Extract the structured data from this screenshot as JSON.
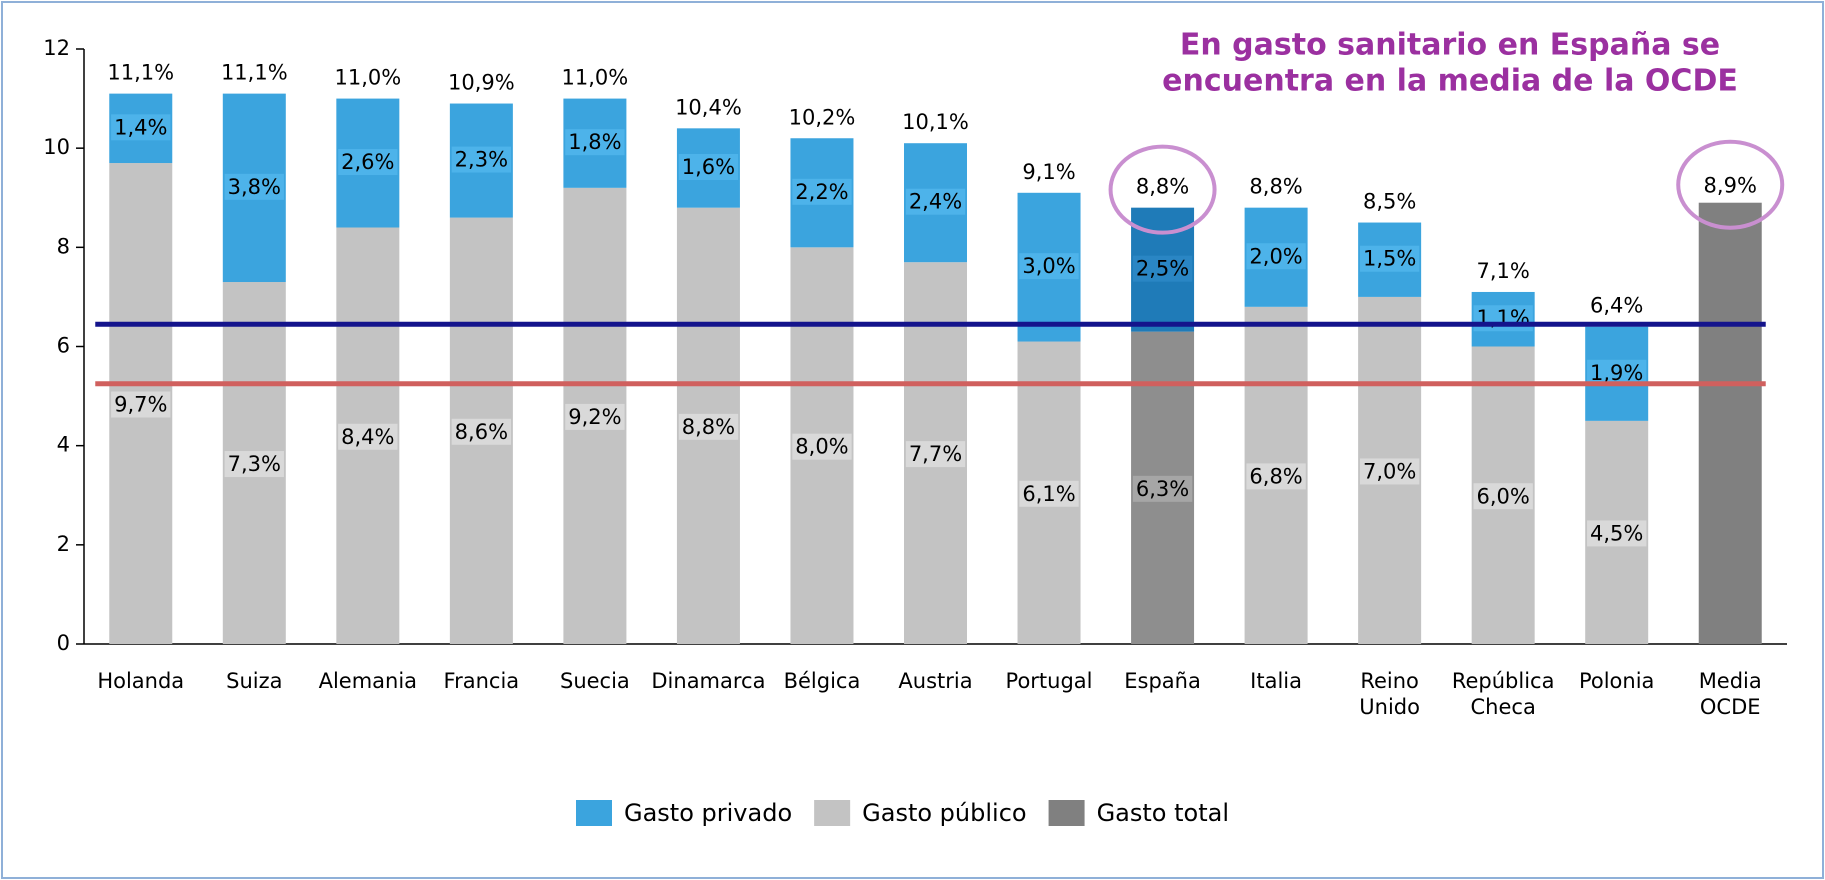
{
  "chart_data": {
    "type": "stacked_bar",
    "annotation": [
      "En gasto sanitario en España se",
      "encuentra en la media de la OCDE"
    ],
    "categories": [
      "Holanda",
      "Suiza",
      "Alemania",
      "Francia",
      "Suecia",
      "Dinamarca",
      "Bélgica",
      "Austria",
      "Portugal",
      "España",
      "Italia",
      "Reino Unido",
      "República Checa",
      "Polonia",
      "Media OCDE"
    ],
    "series": [
      {
        "name": "Gasto privado",
        "color": "#3ba4de",
        "highlight_color": "#1f7bb8",
        "values": [
          1.4,
          3.8,
          2.6,
          2.3,
          1.8,
          1.6,
          2.2,
          2.4,
          3.0,
          2.5,
          2.0,
          1.5,
          1.1,
          1.9,
          null
        ],
        "value_labels": [
          "1,4%",
          "3,8%",
          "2,6%",
          "2,3%",
          "1,8%",
          "1,6%",
          "2,2%",
          "2,4%",
          "3,0%",
          "2,5%",
          "2,0%",
          "1,5%",
          "1,1%",
          "1,9%",
          null
        ]
      },
      {
        "name": "Gasto público",
        "color": "#c3c3c3",
        "highlight_color": "#8e8e8e",
        "values": [
          9.7,
          7.3,
          8.4,
          8.6,
          9.2,
          8.8,
          8.0,
          7.7,
          6.1,
          6.3,
          6.8,
          7.0,
          6.0,
          4.5,
          null
        ],
        "value_labels": [
          "9,7%",
          "7,3%",
          "8,4%",
          "8,6%",
          "9,2%",
          "8,8%",
          "8,0%",
          "7,7%",
          "6,1%",
          "6,3%",
          "6,8%",
          "7,0%",
          "6,0%",
          "4,5%",
          null
        ]
      },
      {
        "name": "Gasto total",
        "color": "#808080",
        "values": [
          null,
          null,
          null,
          null,
          null,
          null,
          null,
          null,
          null,
          null,
          null,
          null,
          null,
          null,
          8.9
        ],
        "value_labels": [
          null,
          null,
          null,
          null,
          null,
          null,
          null,
          null,
          null,
          null,
          null,
          null,
          null,
          null,
          "8,9%"
        ]
      }
    ],
    "totals": {
      "values": [
        11.1,
        11.1,
        11.0,
        10.9,
        11.0,
        10.4,
        10.2,
        10.1,
        9.1,
        8.8,
        8.8,
        8.5,
        7.1,
        6.4,
        null
      ],
      "value_labels": [
        "11,1%",
        "11,1%",
        "11,0%",
        "10,9%",
        "11,0%",
        "10,4%",
        "10,2%",
        "10,1%",
        "9,1%",
        "8,8%",
        "8,8%",
        "8,5%",
        "7,1%",
        "6,4%",
        null
      ]
    },
    "highlight": [
      "España",
      "Media OCDE"
    ],
    "highlight_ring_color": "#c98fd0",
    "reference_lines": [
      {
        "value": 6.45,
        "color": "#14148c"
      },
      {
        "value": 5.25,
        "color": "#d0605e"
      }
    ],
    "ylim": [
      0,
      12
    ],
    "yticks": [
      0,
      2,
      4,
      6,
      8,
      10,
      12
    ],
    "grid": false,
    "legend": "bottom"
  }
}
